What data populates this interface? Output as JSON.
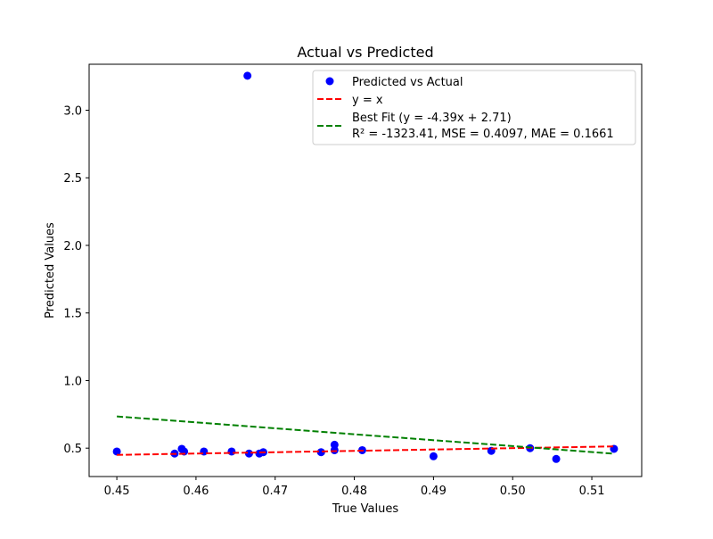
{
  "chart_data": {
    "type": "scatter",
    "title": "Actual vs Predicted",
    "xlabel": "True Values",
    "ylabel": "Predicted Values",
    "xlim": [
      0.4465,
      0.5163
    ],
    "ylim": [
      0.29,
      3.34
    ],
    "xticks": [
      {
        "value": 0.45,
        "label": "0.45"
      },
      {
        "value": 0.46,
        "label": "0.46"
      },
      {
        "value": 0.47,
        "label": "0.47"
      },
      {
        "value": 0.48,
        "label": "0.48"
      },
      {
        "value": 0.49,
        "label": "0.49"
      },
      {
        "value": 0.5,
        "label": "0.50"
      },
      {
        "value": 0.51,
        "label": "0.51"
      }
    ],
    "yticks": [
      {
        "value": 0.5,
        "label": "0.5"
      },
      {
        "value": 1.0,
        "label": "1.0"
      },
      {
        "value": 1.5,
        "label": "1.5"
      },
      {
        "value": 2.0,
        "label": "2.0"
      },
      {
        "value": 2.5,
        "label": "2.5"
      },
      {
        "value": 3.0,
        "label": "3.0"
      }
    ],
    "grid": false,
    "legend_position": "top-right",
    "series": [
      {
        "name": "Predicted vs Actual",
        "kind": "scatter",
        "color": "#0000ff",
        "points": [
          {
            "x": 0.45,
            "y": 0.475
          },
          {
            "x": 0.4573,
            "y": 0.46
          },
          {
            "x": 0.4582,
            "y": 0.495
          },
          {
            "x": 0.4585,
            "y": 0.475
          },
          {
            "x": 0.461,
            "y": 0.475
          },
          {
            "x": 0.4645,
            "y": 0.475
          },
          {
            "x": 0.4665,
            "y": 3.255
          },
          {
            "x": 0.4667,
            "y": 0.46
          },
          {
            "x": 0.468,
            "y": 0.46
          },
          {
            "x": 0.4685,
            "y": 0.47
          },
          {
            "x": 0.4758,
            "y": 0.47
          },
          {
            "x": 0.4775,
            "y": 0.525
          },
          {
            "x": 0.4775,
            "y": 0.485
          },
          {
            "x": 0.481,
            "y": 0.485
          },
          {
            "x": 0.49,
            "y": 0.44
          },
          {
            "x": 0.4973,
            "y": 0.48
          },
          {
            "x": 0.5022,
            "y": 0.5
          },
          {
            "x": 0.5055,
            "y": 0.42
          },
          {
            "x": 0.5128,
            "y": 0.495
          }
        ]
      },
      {
        "name": "y = x",
        "kind": "line",
        "style": "dashed",
        "color": "#ff0000",
        "x": [
          0.45,
          0.5128
        ],
        "y": [
          0.45,
          0.5128
        ]
      },
      {
        "name": "Best Fit (y = -4.39x + 2.71)",
        "name_line2": "R² = -1323.41, MSE = 0.4097, MAE = 0.1661",
        "kind": "line",
        "style": "dashed",
        "color": "#008000",
        "x": [
          0.45,
          0.5128
        ],
        "y": [
          0.7345,
          0.4588
        ]
      }
    ]
  }
}
